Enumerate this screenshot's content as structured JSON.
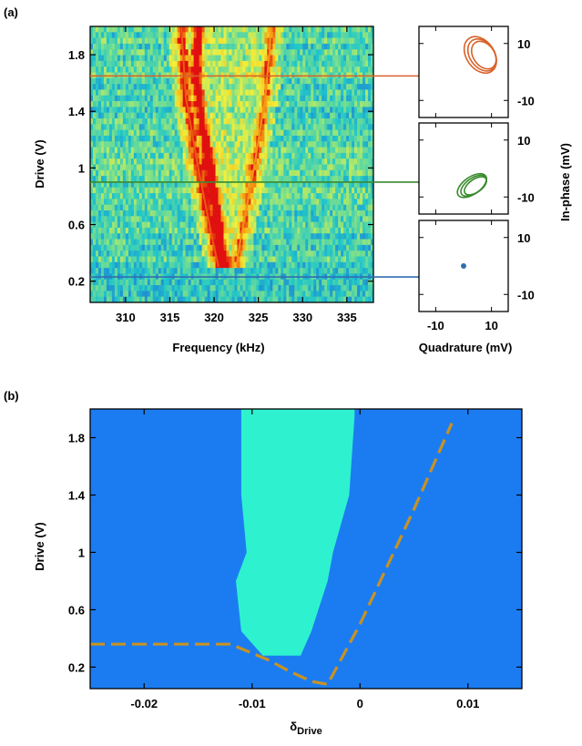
{
  "chart_data": [
    {
      "panel_label": "(a)",
      "type": "heatmap",
      "xlabel": "Frequency (kHz)",
      "ylabel": "Drive (V)",
      "xlim": [
        306,
        338
      ],
      "ylim": [
        0.05,
        2.0
      ],
      "x_ticks": [
        310,
        315,
        320,
        325,
        330,
        335
      ],
      "y_ticks": [
        0.2,
        0.6,
        1,
        1.4,
        1.8
      ],
      "colormap": [
        "#1f7ad8",
        "#21c7c9",
        "#7fe08a",
        "#f2f03a",
        "#f6a312",
        "#e01010"
      ],
      "ridges": [
        {
          "name": "main",
          "points": [
            [
              318.2,
              2.0
            ],
            [
              318.0,
              1.6
            ],
            [
              319.0,
              1.2
            ],
            [
              320.0,
              0.8
            ],
            [
              321.0,
              0.4
            ],
            [
              321.3,
              0.3
            ]
          ],
          "intensity": 1.0
        },
        {
          "name": "left",
          "points": [
            [
              316.3,
              2.0
            ],
            [
              316.8,
              1.5
            ],
            [
              318.2,
              1.0
            ],
            [
              319.8,
              0.5
            ],
            [
              320.5,
              0.3
            ]
          ],
          "intensity": 0.75
        },
        {
          "name": "right",
          "points": [
            [
              326.5,
              2.0
            ],
            [
              325.8,
              1.5
            ],
            [
              324.5,
              1.0
            ],
            [
              323.0,
              0.5
            ],
            [
              322.5,
              0.3
            ]
          ],
          "intensity": 0.55
        }
      ],
      "markers": [
        {
          "drive": 1.65,
          "color": "#d9622b"
        },
        {
          "drive": 0.9,
          "color": "#3a8a2e"
        },
        {
          "drive": 0.23,
          "color": "#2f6fb0"
        }
      ]
    },
    {
      "type": "scatter",
      "xlabel": "Quadrature (mV)",
      "ylabel": "In-phase (mV)",
      "x_ticks": [
        -10,
        10
      ],
      "y_ticks": [
        10,
        -10
      ],
      "xlim": [
        -16,
        16
      ],
      "ylim": [
        -16,
        16
      ],
      "subpanels": [
        {
          "color": "#d9622b",
          "shape": "loop",
          "center": [
            6,
            6
          ],
          "rx": 5,
          "ry": 7
        },
        {
          "color": "#3a8a2e",
          "shape": "loop",
          "center": [
            3,
            -6
          ],
          "rx": 6,
          "ry": 3
        },
        {
          "color": "#2f6fb0",
          "shape": "dot",
          "center": [
            0,
            0
          ]
        }
      ]
    },
    {
      "panel_label": "(b)",
      "type": "heatmap",
      "xlabel_main": "δ",
      "xlabel_sub": "Drive",
      "ylabel": "Drive (V)",
      "xlim": [
        -0.025,
        0.015
      ],
      "ylim": [
        0.05,
        2.0
      ],
      "x_ticks": [
        -0.02,
        -0.01,
        0,
        0.01
      ],
      "x_tick_labels": [
        "-0.02",
        "-0.01",
        "0",
        "0.01"
      ],
      "y_ticks": [
        0.2,
        0.6,
        1,
        1.4,
        1.8
      ],
      "background_color": "#1b7cf2",
      "region_color": "#2ef2cf",
      "dash_color": "#c89223",
      "region_left": [
        [
          -0.011,
          1.95
        ],
        [
          -0.011,
          1.4
        ],
        [
          -0.0105,
          1.0
        ],
        [
          -0.0115,
          0.8
        ],
        [
          -0.011,
          0.45
        ],
        [
          -0.009,
          0.28
        ]
      ],
      "region_right": [
        [
          -0.0005,
          1.95
        ],
        [
          -0.001,
          1.4
        ],
        [
          -0.0025,
          1.0
        ],
        [
          -0.003,
          0.8
        ],
        [
          -0.0045,
          0.45
        ],
        [
          -0.0055,
          0.28
        ]
      ],
      "dashed_boundary": [
        [
          -0.025,
          0.36
        ],
        [
          -0.012,
          0.36
        ],
        [
          -0.0085,
          0.25
        ],
        [
          -0.0065,
          0.17
        ],
        [
          -0.0045,
          0.1
        ],
        [
          -0.003,
          0.08
        ],
        [
          0.0,
          0.5
        ],
        [
          0.005,
          1.3
        ],
        [
          0.0085,
          1.9
        ]
      ]
    }
  ]
}
